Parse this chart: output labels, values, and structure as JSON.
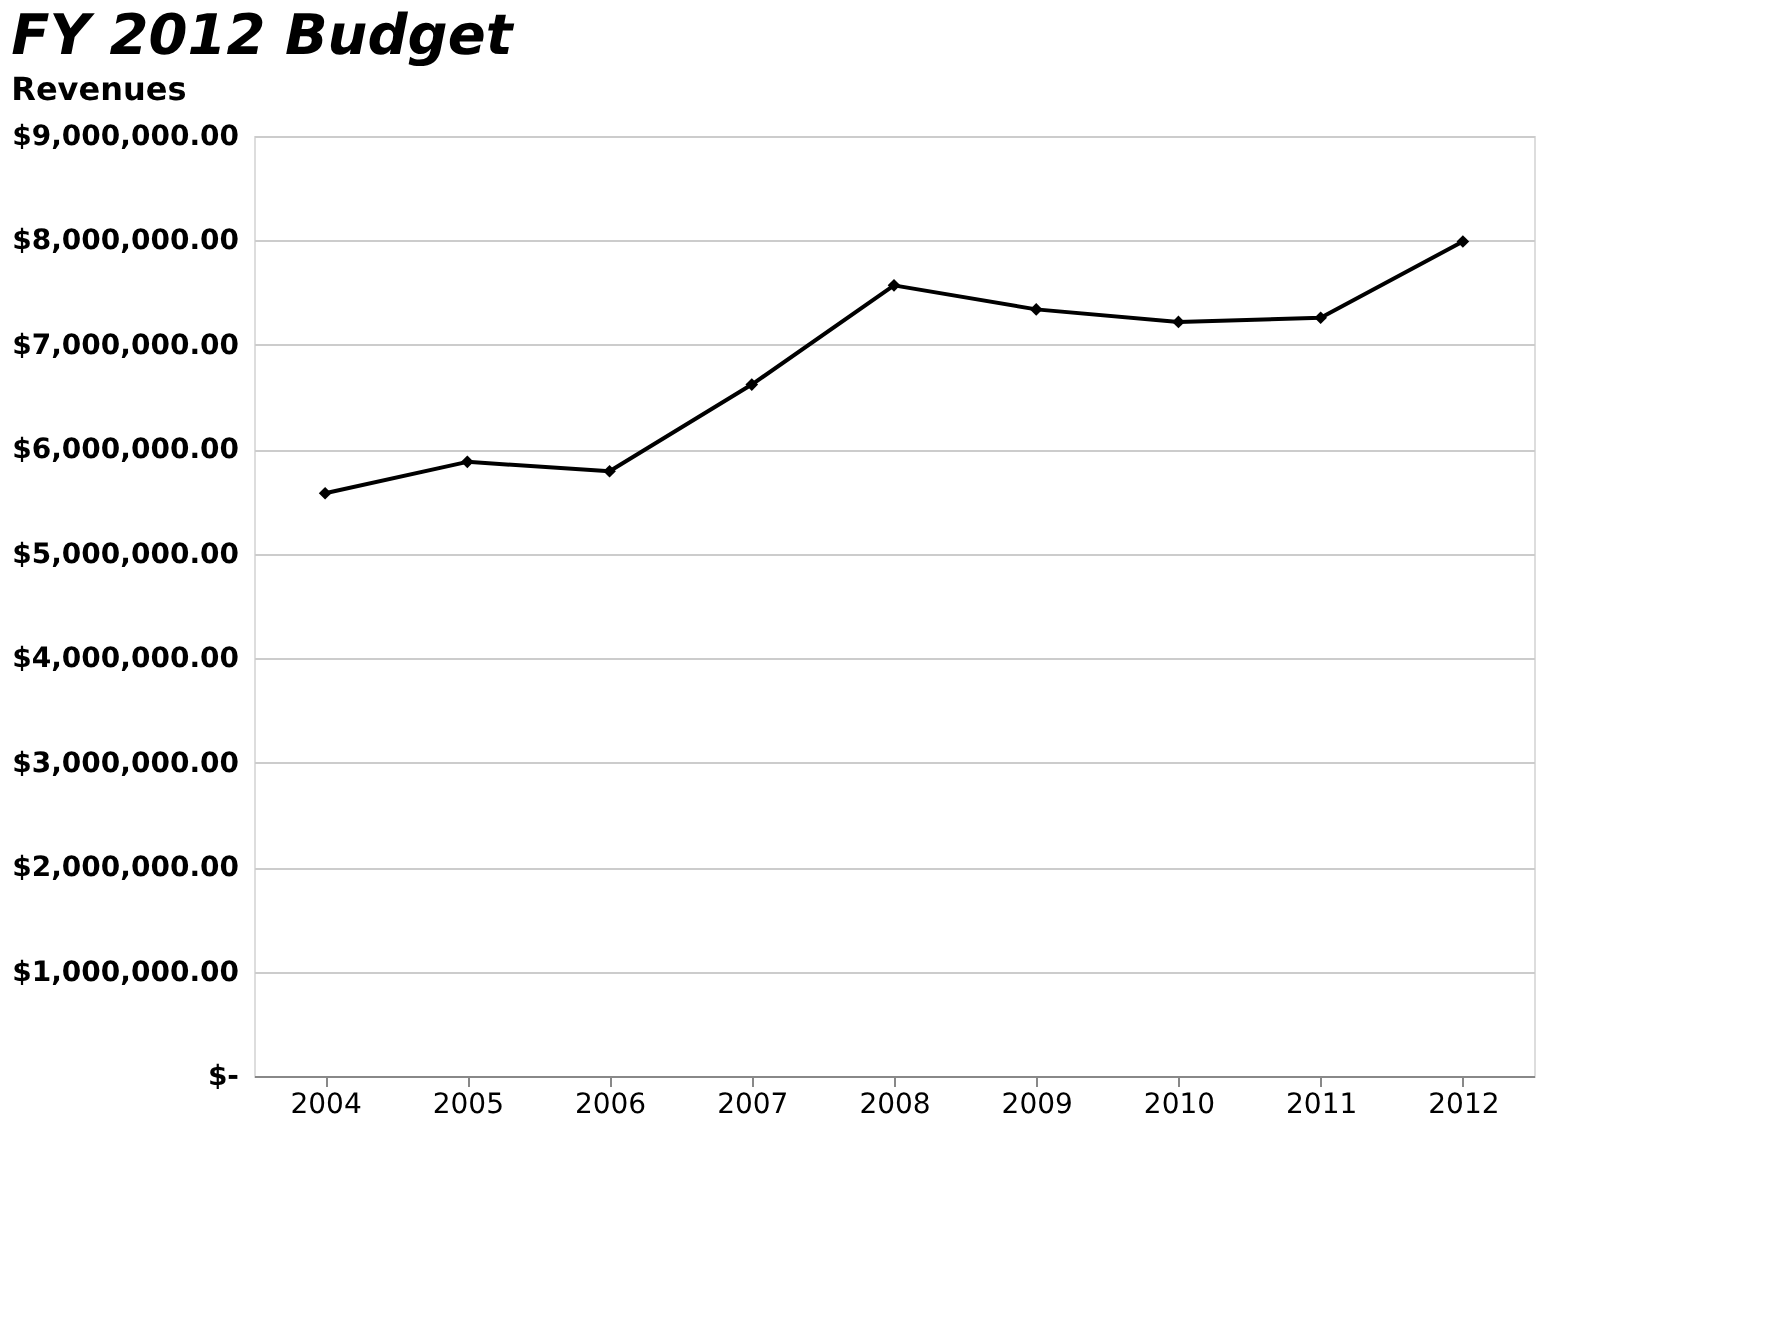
{
  "chart_data": {
    "type": "line",
    "title": "FY 2012 Budget",
    "subtitle": "Revenues",
    "categories": [
      "2004",
      "2005",
      "2006",
      "2007",
      "2008",
      "2009",
      "2010",
      "2011",
      "2012"
    ],
    "series": [
      {
        "color": "#000000",
        "values": [
          5580000,
          5880000,
          5790000,
          6620000,
          7570000,
          7340000,
          7220000,
          7260000,
          7990000
        ]
      }
    ],
    "ylim": [
      0,
      9000000
    ],
    "yticks": [
      {
        "value": 0,
        "label": "$-"
      },
      {
        "value": 1000000,
        "label": "$1,000,000.00"
      },
      {
        "value": 2000000,
        "label": "$2,000,000.00"
      },
      {
        "value": 3000000,
        "label": "$3,000,000.00"
      },
      {
        "value": 4000000,
        "label": "$4,000,000.00"
      },
      {
        "value": 5000000,
        "label": "$5,000,000.00"
      },
      {
        "value": 6000000,
        "label": "$6,000,000.00"
      },
      {
        "value": 7000000,
        "label": "$7,000,000.00"
      },
      {
        "value": 8000000,
        "label": "$8,000,000.00"
      },
      {
        "value": 9000000,
        "label": "$9,000,000.00"
      }
    ],
    "grid": "y",
    "marker": "diamond",
    "line_style": "solid",
    "legend": false
  }
}
